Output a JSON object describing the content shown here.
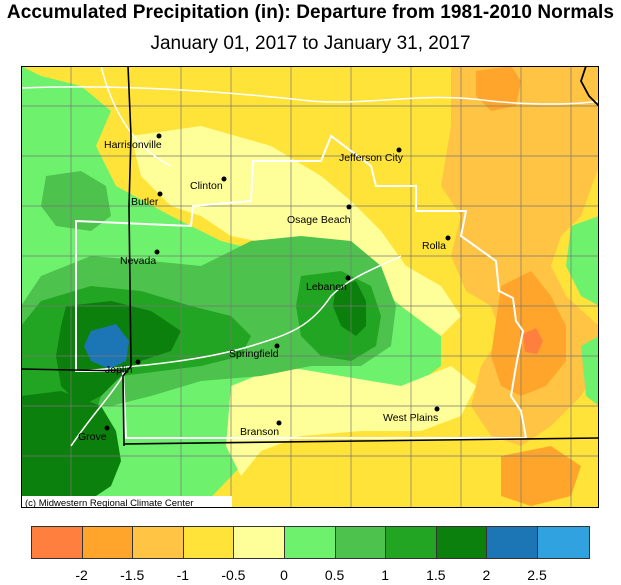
{
  "title": "Accumulated Precipitation (in): Departure from 1981-2010 Normals",
  "subtitle": "January 01, 2017 to January 31, 2017",
  "credit": "(c) Midwestern Regional Climate Center",
  "cities": [
    {
      "name": "Harrisonville"
    },
    {
      "name": "Jefferson City"
    },
    {
      "name": "Clinton"
    },
    {
      "name": "Butler"
    },
    {
      "name": "Osage Beach"
    },
    {
      "name": "Rolla"
    },
    {
      "name": "Nevada"
    },
    {
      "name": "Lebanon"
    },
    {
      "name": "Joplin"
    },
    {
      "name": "Springfield"
    },
    {
      "name": "West Plains"
    },
    {
      "name": "Grove"
    },
    {
      "name": "Branson"
    }
  ],
  "legend": {
    "colors": [
      "#ff7f3f",
      "#ffa52b",
      "#ffc444",
      "#ffe338",
      "#ffff9a",
      "#6ef26e",
      "#4dc24d",
      "#22a522",
      "#0c800c",
      "#1c76b6",
      "#30a2e0"
    ],
    "ticks": [
      "-2",
      "-1.5",
      "-1",
      "-0.5",
      "0",
      "0.5",
      "1",
      "1.5",
      "2",
      "2.5"
    ]
  }
}
